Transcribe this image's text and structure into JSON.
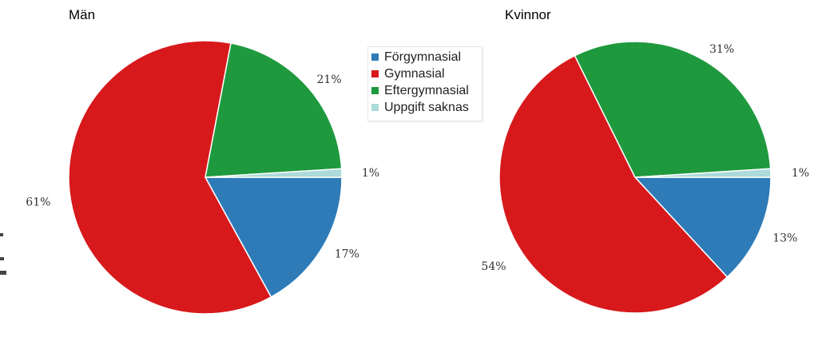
{
  "legend": {
    "items": [
      {
        "label": "Förgymnasial",
        "color": "#2e7bb8"
      },
      {
        "label": "Gymnasial",
        "color": "#d7191c"
      },
      {
        "label": "Eftergymnasial",
        "color": "#1f993e"
      },
      {
        "label": "Uppgift saknas",
        "color": "#addada"
      }
    ]
  },
  "chart_data": [
    {
      "type": "pie",
      "title": "Män",
      "categories": [
        "Förgymnasial",
        "Gymnasial",
        "Eftergymnasial",
        "Uppgift saknas"
      ],
      "values": [
        17,
        61,
        21,
        1
      ],
      "labels": [
        "17%",
        "61%",
        "21%",
        "1%"
      ]
    },
    {
      "type": "pie",
      "title": "Kvinnor",
      "categories": [
        "Förgymnasial",
        "Gymnasial",
        "Eftergymnasial",
        "Uppgift saknas"
      ],
      "values": [
        13,
        54,
        31,
        1
      ],
      "labels": [
        "13%",
        "54%",
        "31%",
        "1%"
      ]
    }
  ]
}
